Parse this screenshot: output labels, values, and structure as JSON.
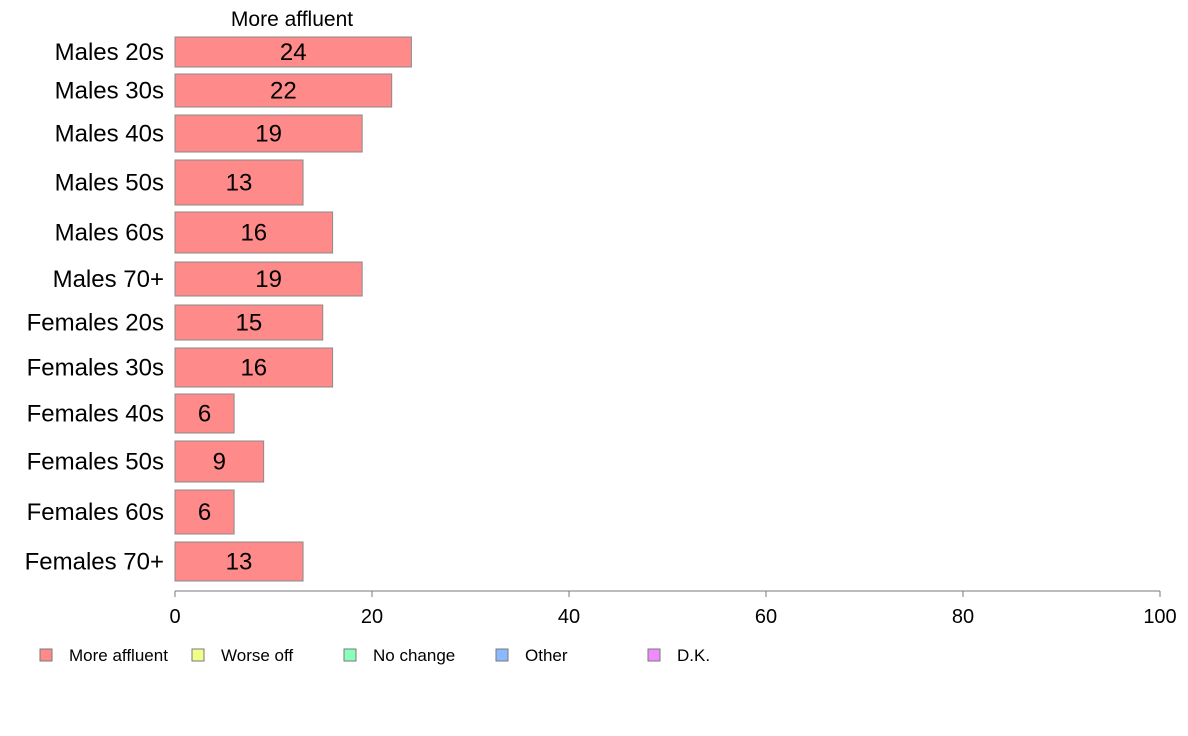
{
  "chart_data": {
    "type": "bar",
    "orientation": "horizontal",
    "title": "More affluent",
    "categories": [
      "Males 20s",
      "Males 30s",
      "Males 40s",
      "Males 50s",
      "Males 60s",
      "Males 70+",
      "Females 20s",
      "Females 30s",
      "Females 40s",
      "Females 50s",
      "Females 60s",
      "Females 70+"
    ],
    "series": [
      {
        "name": "More affluent",
        "color": "#ff8a8a",
        "values": [
          24,
          22,
          19,
          13,
          16,
          19,
          15,
          16,
          6,
          9,
          6,
          13
        ]
      }
    ],
    "xlim": [
      0,
      100
    ],
    "xticks": [
      "0",
      "20",
      "40",
      "60",
      "80",
      "100"
    ],
    "grid": false,
    "legend": {
      "position": "bottom-left",
      "items": [
        {
          "label": "More affluent",
          "color": "#ff8a8a"
        },
        {
          "label": "Worse off",
          "color": "#f0ff8a"
        },
        {
          "label": "No change",
          "color": "#8affb9"
        },
        {
          "label": "Other",
          "color": "#8ab9ff"
        },
        {
          "label": "D.K.",
          "color": "#f08aff"
        }
      ]
    }
  }
}
